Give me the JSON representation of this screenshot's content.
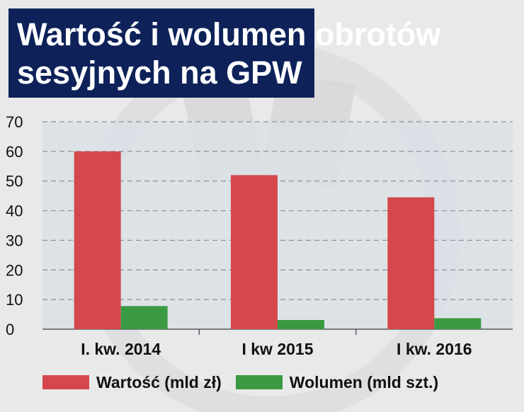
{
  "colors": {
    "title_bg": "#0e2259",
    "plot_bg": "#dbe1e6",
    "grid": "#8a8f96",
    "wartosc": "#d4484b",
    "wolumen": "#3a9a41"
  },
  "chart_data": {
    "type": "bar",
    "title": "Wartość i wolumen obrotów sesyjnych na GPW",
    "title_lines": [
      "Wartość i wolumen obrotów",
      "sesyjnych na GPW"
    ],
    "categories": [
      "I. kw. 2014",
      "I kw 2015",
      "I kw. 2016"
    ],
    "series": [
      {
        "name": "Wartość (mld zł)",
        "values": [
          60,
          52,
          44.5
        ],
        "color": "#d4484b"
      },
      {
        "name": "Wolumen (mld szt.)",
        "values": [
          7.8,
          3.1,
          3.7
        ],
        "color": "#3a9a41"
      }
    ],
    "yticks": [
      "0",
      "10",
      "20",
      "30",
      "40",
      "50",
      "60",
      "70"
    ],
    "ylim": [
      0,
      70
    ],
    "grid": true,
    "legend": "bottom"
  }
}
